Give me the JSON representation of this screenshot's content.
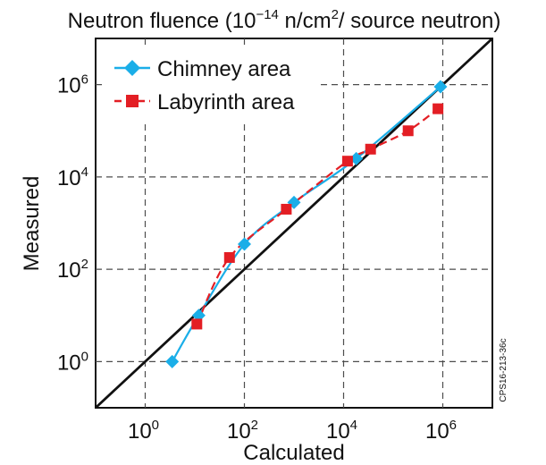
{
  "chart_data": {
    "type": "scatter",
    "title_parts": [
      "Neutron fluence (10",
      "−14",
      " n/cm",
      "2",
      "/ source neutron)"
    ],
    "xlabel": "Calculated",
    "ylabel": "Measured",
    "side_label": "CPS16-213-36c",
    "scale": "log10",
    "xlim": [
      0.1,
      10000000
    ],
    "ylim": [
      0.1,
      10000000
    ],
    "grid": true,
    "grid_style": "dashed",
    "legend_position": "top-left",
    "x_ticks": [
      {
        "base": "10",
        "exp": "0",
        "value": 1
      },
      {
        "base": "10",
        "exp": "2",
        "value": 100
      },
      {
        "base": "10",
        "exp": "4",
        "value": 10000
      },
      {
        "base": "10",
        "exp": "6",
        "value": 1000000
      }
    ],
    "y_ticks": [
      {
        "base": "10",
        "exp": "0",
        "value": 1
      },
      {
        "base": "10",
        "exp": "2",
        "value": 100
      },
      {
        "base": "10",
        "exp": "4",
        "value": 10000
      },
      {
        "base": "10",
        "exp": "6",
        "value": 1000000
      }
    ],
    "reference_line": {
      "type": "y=x",
      "color": "#111111"
    },
    "series": [
      {
        "name": "Chimney area",
        "color": "#1aaee8",
        "marker": "diamond",
        "line": "solid-smooth",
        "points": [
          {
            "x": 3.5,
            "y": 1
          },
          {
            "x": 12,
            "y": 10
          },
          {
            "x": 100,
            "y": 350
          },
          {
            "x": 1000,
            "y": 2800
          },
          {
            "x": 18000,
            "y": 25000
          },
          {
            "x": 900000,
            "y": 900000
          }
        ]
      },
      {
        "name": "Labyrinth area",
        "color": "#e31e24",
        "marker": "square",
        "line": "dashed",
        "points": [
          {
            "x": 11,
            "y": 6.5
          },
          {
            "x": 50,
            "y": 180
          },
          {
            "x": 700,
            "y": 2000
          },
          {
            "x": 12000,
            "y": 22000
          },
          {
            "x": 35000,
            "y": 40000
          },
          {
            "x": 200000,
            "y": 100000
          },
          {
            "x": 800000,
            "y": 300000
          }
        ]
      }
    ]
  },
  "colors": {
    "axis": "#111111",
    "grid": "#4d4d4d",
    "background": "#ffffff"
  }
}
